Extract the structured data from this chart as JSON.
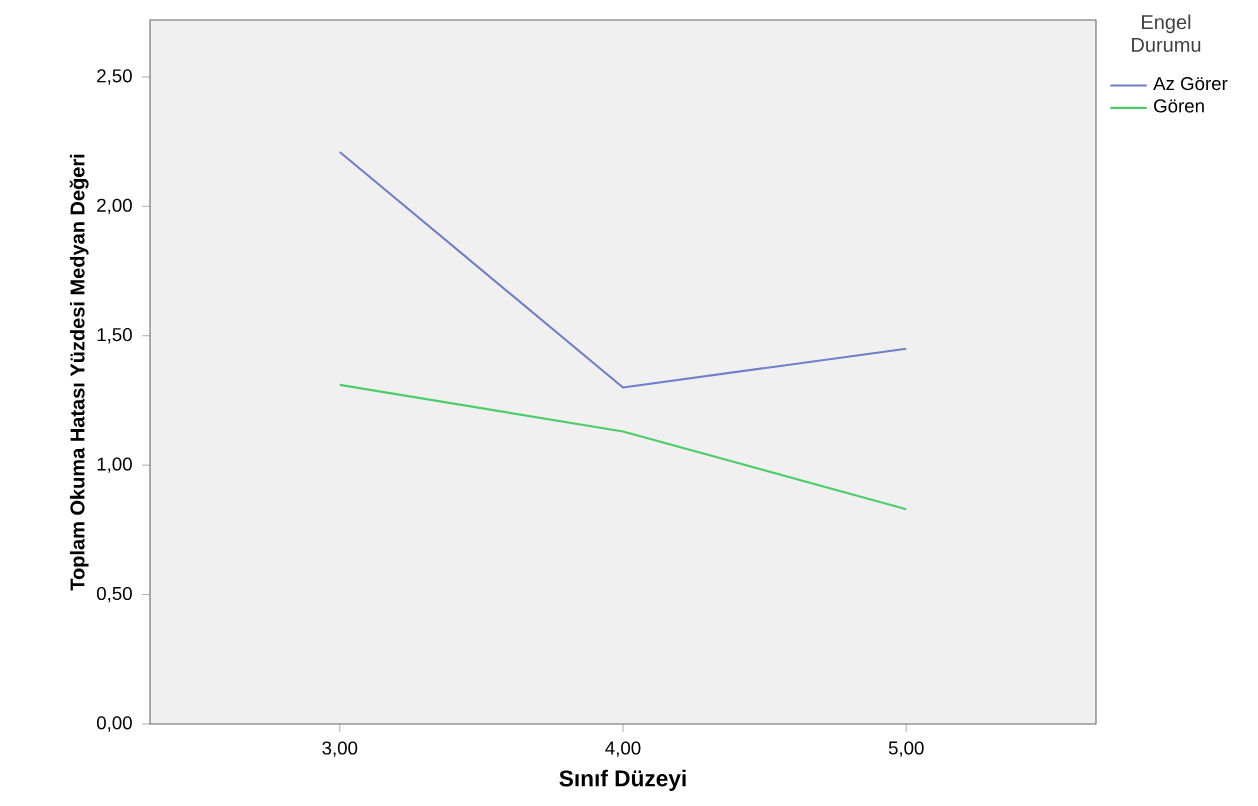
{
  "chart_data": {
    "type": "line",
    "xlabel": "Sınıf Düzeyi",
    "ylabel": "Toplam Okuma Hatası Yüzdesi Medyan Değeri",
    "legend_title": "Engel Durumu",
    "x": [
      3,
      4,
      5
    ],
    "series": [
      {
        "name": "Az Görer",
        "color": "#6f7fc8",
        "values": [
          2.21,
          1.3,
          1.45
        ]
      },
      {
        "name": "Gören",
        "color": "#4dcc6b",
        "values": [
          1.31,
          1.13,
          0.83
        ]
      }
    ],
    "xlim": [
      2.33,
      5.67
    ],
    "ylim": [
      0,
      2.72
    ],
    "xticks": [
      {
        "value": 3,
        "label": "3,00"
      },
      {
        "value": 4,
        "label": "4,00"
      },
      {
        "value": 5,
        "label": "5,00"
      }
    ],
    "yticks": [
      {
        "value": 0,
        "label": "0,00"
      },
      {
        "value": 0.5,
        "label": "0,50"
      },
      {
        "value": 1,
        "label": "1,00"
      },
      {
        "value": 1.5,
        "label": "1,50"
      },
      {
        "value": 2,
        "label": "2,00"
      },
      {
        "value": 2.5,
        "label": "2,50"
      }
    ],
    "legend": "right",
    "grid": false,
    "marker": "none",
    "line_style": "solid"
  }
}
